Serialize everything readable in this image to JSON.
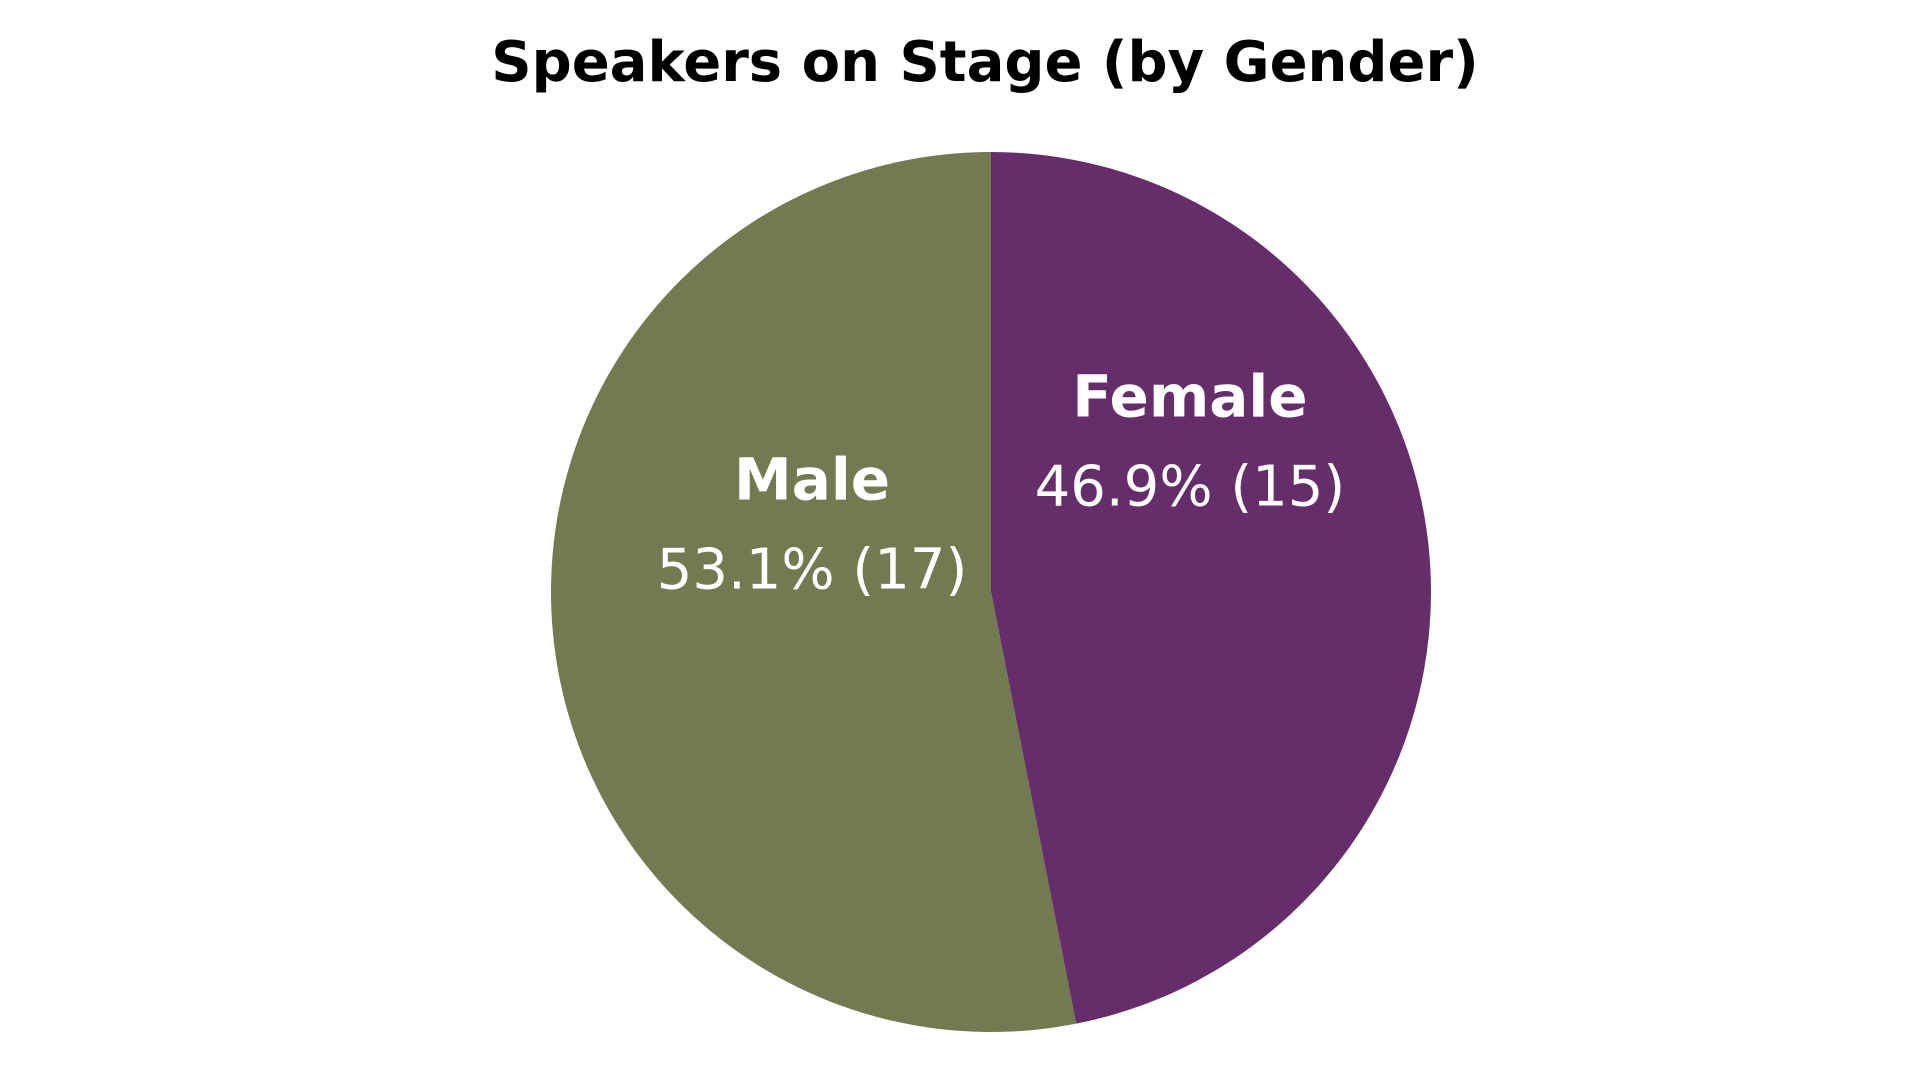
{
  "chart_data": {
    "type": "pie",
    "title": "Speakers on Stage (by Gender)",
    "categories": [
      "Female",
      "Male"
    ],
    "values": [
      46.9,
      53.1
    ],
    "value_labels": [
      "46.9% (15)",
      "53.1% (17)"
    ],
    "colors": [
      "#662d6b",
      "#717a50"
    ]
  }
}
